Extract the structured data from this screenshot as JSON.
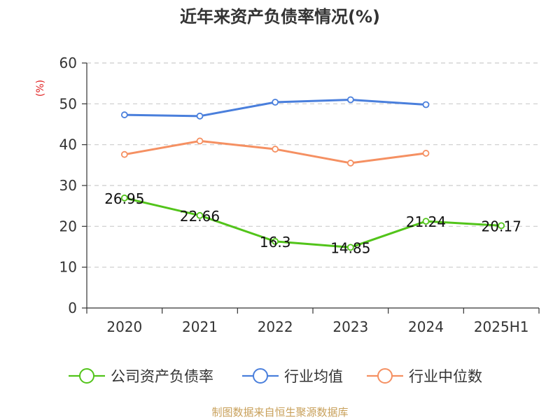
{
  "chart_data": {
    "type": "line",
    "title": "近年来资产负债率情况(%)",
    "ylabel": "(%)",
    "xlabel": "",
    "categories": [
      "2020",
      "2021",
      "2022",
      "2023",
      "2024",
      "2025H1"
    ],
    "ylim": [
      0,
      60
    ],
    "yticks": [
      0,
      10,
      20,
      30,
      40,
      50,
      60
    ],
    "grid": true,
    "legend_position": "bottom",
    "series": [
      {
        "name": "公司资产负债率",
        "color": "#52c41a",
        "values": [
          26.95,
          22.66,
          16.3,
          14.85,
          21.24,
          20.17
        ],
        "show_labels": true
      },
      {
        "name": "行业均值",
        "color": "#4a7fdc",
        "values": [
          47.3,
          47.0,
          50.4,
          51.0,
          49.8,
          null
        ],
        "show_labels": false
      },
      {
        "name": "行业中位数",
        "color": "#f59062",
        "values": [
          37.6,
          40.9,
          38.9,
          35.5,
          37.9,
          null
        ],
        "show_labels": false
      }
    ],
    "data_labels": [
      "26.95",
      "22.66",
      "16.3",
      "14.85",
      "21.24",
      "20.17"
    ]
  },
  "footer": {
    "source": "制图数据来自恒生聚源数据库"
  }
}
